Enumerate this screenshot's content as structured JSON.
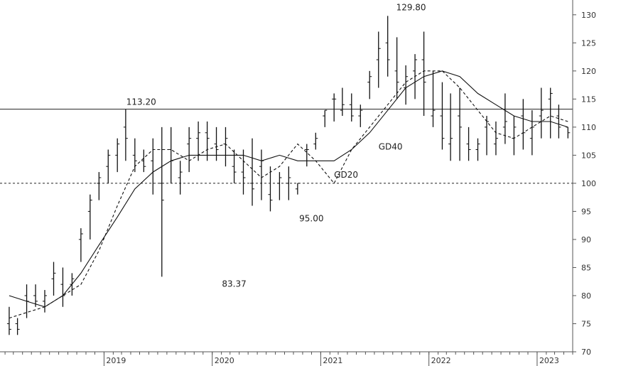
{
  "chart_data": {
    "type": "line",
    "title": "",
    "xlabel": "",
    "ylabel": "",
    "ylim": [
      70,
      132
    ],
    "y_ticks": [
      70,
      75,
      80,
      85,
      90,
      95,
      100,
      105,
      110,
      115,
      120,
      125,
      130
    ],
    "x_ticks": [
      "2019",
      "2020",
      "2021",
      "2022",
      "2023"
    ],
    "grid": false,
    "legend": "none",
    "horizontal_lines": [
      {
        "value": 113.2,
        "style": "solid"
      },
      {
        "value": 100,
        "style": "dotted"
      }
    ],
    "annotations": [
      {
        "text": "113.20",
        "x": "2019-07",
        "y": 113.2
      },
      {
        "text": "83.37",
        "x": "2020-03",
        "y": 83.37
      },
      {
        "text": "95.00",
        "x": "2020-12",
        "y": 95.0
      },
      {
        "text": "129.80",
        "x": "2021-12",
        "y": 129.8
      },
      {
        "text": "GD40",
        "x": "2021-07",
        "y": 106
      },
      {
        "text": "GD20",
        "x": "2021-02",
        "y": 101
      }
    ],
    "series": [
      {
        "type": "ohlc",
        "x": [
          "2018-02",
          "2018-03",
          "2018-04",
          "2018-05",
          "2018-06",
          "2018-07",
          "2018-08",
          "2018-09",
          "2018-10",
          "2018-11",
          "2018-12",
          "2019-01",
          "2019-02",
          "2019-03",
          "2019-04",
          "2019-05",
          "2019-06",
          "2019-07",
          "2019-08",
          "2019-09",
          "2019-10",
          "2019-11",
          "2019-12",
          "2020-01",
          "2020-02",
          "2020-03",
          "2020-04",
          "2020-05",
          "2020-06",
          "2020-07",
          "2020-08",
          "2020-09",
          "2020-10",
          "2020-11",
          "2020-12",
          "2021-01",
          "2021-02",
          "2021-03",
          "2021-04",
          "2021-05",
          "2021-06",
          "2021-07",
          "2021-08",
          "2021-09",
          "2021-10",
          "2021-11",
          "2021-12",
          "2022-01",
          "2022-02",
          "2022-03",
          "2022-04",
          "2022-05",
          "2022-06",
          "2022-07",
          "2022-08",
          "2022-09",
          "2022-10",
          "2022-11",
          "2022-12",
          "2023-01",
          "2023-02",
          "2023-03",
          "2023-04"
        ],
        "high": [
          78,
          76,
          82,
          82,
          81,
          86,
          85,
          84,
          92,
          98,
          102,
          106,
          108,
          113.2,
          108,
          106,
          108,
          110,
          110,
          104,
          110,
          111,
          111,
          110,
          110,
          106,
          106,
          108,
          106,
          103,
          102,
          103,
          100,
          107,
          109,
          113,
          116,
          117,
          116,
          114,
          120,
          127,
          129.8,
          126,
          121,
          123,
          127,
          120,
          118,
          116,
          117,
          110,
          108,
          112,
          111,
          116,
          112,
          115,
          113,
          117,
          117,
          114,
          110
        ],
        "low": [
          73,
          73,
          76,
          78,
          77,
          80,
          78,
          80,
          86,
          90,
          97,
          100,
          102,
          104,
          102,
          102,
          98,
          83.37,
          100,
          98,
          102,
          104,
          104,
          104,
          103,
          100,
          98,
          96,
          97,
          95,
          97,
          97,
          98,
          103,
          106,
          110,
          111,
          112,
          111,
          110,
          115,
          117,
          119,
          115,
          114,
          115,
          112,
          110,
          106,
          104,
          104,
          104,
          104,
          105,
          105,
          107,
          105,
          106,
          105,
          108,
          108,
          108,
          108
        ],
        "open": [
          75,
          75,
          80,
          80,
          79,
          83,
          82,
          82,
          90,
          95,
          100,
          103,
          105,
          110,
          105,
          104,
          104,
          100,
          106,
          101,
          107,
          108,
          109,
          107,
          107,
          103,
          102,
          100,
          103,
          98,
          100,
          100,
          99,
          106,
          107,
          112,
          115,
          113,
          114,
          112,
          118,
          122,
          125,
          120,
          117,
          120,
          122,
          112,
          112,
          107,
          112,
          107,
          106,
          110,
          107,
          110,
          108,
          112,
          108,
          112,
          115,
          112,
          110
        ],
        "close": [
          74,
          74,
          79,
          79,
          80,
          84,
          80,
          83,
          91,
          97,
          101,
          105,
          107,
          108,
          104,
          103,
          106,
          97,
          104,
          102,
          108,
          109,
          108,
          106,
          108,
          102,
          101,
          99,
          104,
          97,
          101,
          101,
          100,
          106,
          108,
          113,
          115,
          114,
          112,
          113,
          119,
          124,
          122,
          118,
          119,
          122,
          118,
          113,
          108,
          108,
          110,
          106,
          107,
          111,
          108,
          111,
          110,
          109,
          110,
          113,
          116,
          110,
          109
        ]
      },
      {
        "name": "GD20",
        "style": "dashed",
        "x": [
          "2018-02",
          "2018-04",
          "2018-06",
          "2018-08",
          "2018-10",
          "2018-12",
          "2019-02",
          "2019-04",
          "2019-06",
          "2019-08",
          "2019-10",
          "2019-12",
          "2020-02",
          "2020-04",
          "2020-06",
          "2020-08",
          "2020-10",
          "2020-12",
          "2021-02",
          "2021-04",
          "2021-06",
          "2021-08",
          "2021-10",
          "2021-12",
          "2022-02",
          "2022-04",
          "2022-06",
          "2022-08",
          "2022-10",
          "2022-12",
          "2023-02",
          "2023-04"
        ],
        "values": [
          76,
          77,
          78,
          80,
          82,
          88,
          96,
          103,
          106,
          106,
          104,
          106,
          107,
          104,
          101,
          103,
          107,
          104,
          100,
          106,
          110,
          114,
          118,
          120,
          120,
          117,
          113,
          109,
          108,
          110,
          112,
          111
        ]
      },
      {
        "name": "GD40",
        "style": "solid",
        "x": [
          "2018-02",
          "2018-04",
          "2018-06",
          "2018-08",
          "2018-10",
          "2018-12",
          "2019-02",
          "2019-04",
          "2019-06",
          "2019-08",
          "2019-10",
          "2019-12",
          "2020-02",
          "2020-04",
          "2020-06",
          "2020-08",
          "2020-10",
          "2020-12",
          "2021-02",
          "2021-04",
          "2021-06",
          "2021-08",
          "2021-10",
          "2021-12",
          "2022-02",
          "2022-04",
          "2022-06",
          "2022-08",
          "2022-10",
          "2022-12",
          "2023-02",
          "2023-04"
        ],
        "values": [
          80,
          79,
          78,
          80,
          84,
          89,
          94,
          99,
          102,
          104,
          105,
          105,
          105,
          105,
          104,
          105,
          104,
          104,
          104,
          106,
          109,
          113,
          117,
          119,
          120,
          119,
          116,
          114,
          112,
          111,
          111,
          110
        ]
      }
    ]
  }
}
